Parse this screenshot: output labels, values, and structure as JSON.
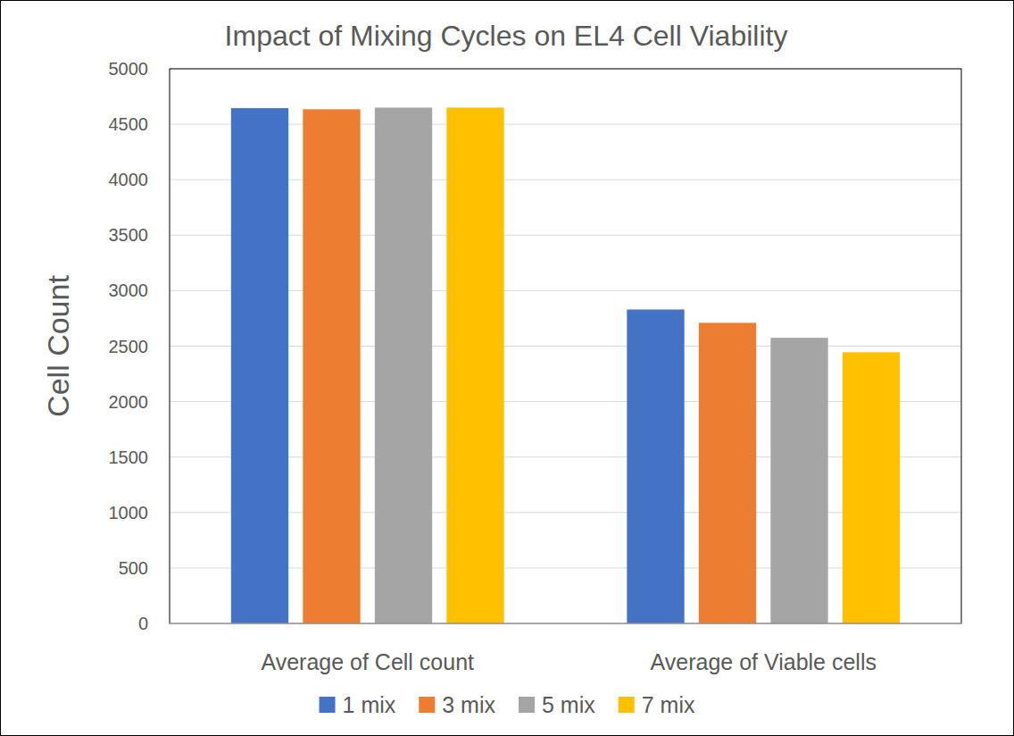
{
  "chart_data": {
    "type": "bar",
    "title": "Impact of Mixing Cycles on EL4 Cell Viability",
    "y_label": "Cell Count",
    "categories": [
      "Average of Cell count",
      "Average of Viable cells"
    ],
    "series": [
      {
        "name": "1 mix",
        "color": "#4472c4",
        "values": [
          4645,
          2830
        ]
      },
      {
        "name": "3 mix",
        "color": "#ed7d31",
        "values": [
          4635,
          2710
        ]
      },
      {
        "name": "5 mix",
        "color": "#a5a5a5",
        "values": [
          4650,
          2575
        ]
      },
      {
        "name": "7 mix",
        "color": "#ffc000",
        "values": [
          4650,
          2445
        ]
      }
    ],
    "ylim": [
      0,
      5000
    ],
    "yticks": [
      0,
      500,
      1000,
      1500,
      2000,
      2500,
      3000,
      3500,
      4000,
      4500,
      5000
    ],
    "grid": true,
    "legend": "bottom"
  }
}
